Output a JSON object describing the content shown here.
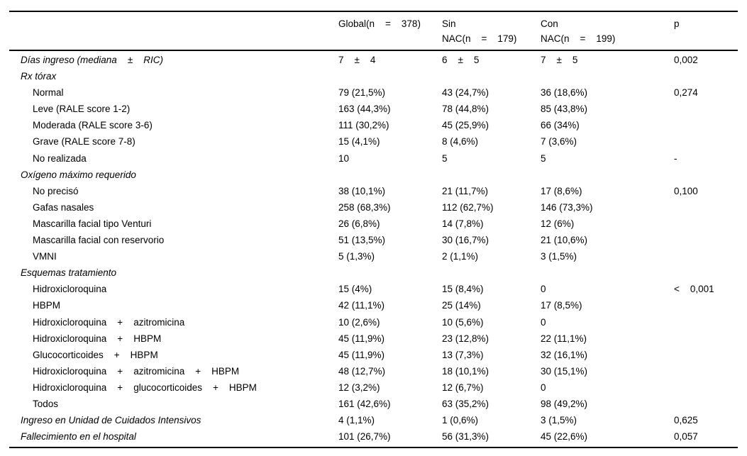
{
  "table": {
    "columns": [
      "",
      "Global(n    =    378)",
      "Sin\nNAC(n    =    179)",
      "Con\nNAC(n    =    199)",
      "p"
    ],
    "rows": [
      {
        "style": "section",
        "label": "Días ingreso (mediana    ±    RIC)",
        "global": "7    ±    4",
        "sin": "6    ±    5",
        "con": "7    ±    5",
        "p": "0,002"
      },
      {
        "style": "section",
        "label": "Rx tórax",
        "global": "",
        "sin": "",
        "con": "",
        "p": ""
      },
      {
        "style": "item",
        "label": "Normal",
        "global": "79 (21,5%)",
        "sin": "43 (24,7%)",
        "con": "36 (18,6%)",
        "p": "0,274"
      },
      {
        "style": "item",
        "label": "Leve (RALE score 1-2)",
        "global": "163 (44,3%)",
        "sin": "78 (44,8%)",
        "con": "85 (43,8%)",
        "p": ""
      },
      {
        "style": "item",
        "label": "Moderada (RALE score 3-6)",
        "global": "111 (30,2%)",
        "sin": "45 (25,9%)",
        "con": "66 (34%)",
        "p": ""
      },
      {
        "style": "item",
        "label": "Grave (RALE score 7-8)",
        "global": "15 (4,1%)",
        "sin": "8 (4,6%)",
        "con": "7 (3,6%)",
        "p": ""
      },
      {
        "style": "item",
        "label": "No realizada",
        "global": "10",
        "sin": "5",
        "con": "5",
        "p": "-"
      },
      {
        "style": "section",
        "label": "Oxígeno máximo requerido",
        "global": "",
        "sin": "",
        "con": "",
        "p": ""
      },
      {
        "style": "item",
        "label": "No precisó",
        "global": "38 (10,1%)",
        "sin": "21 (11,7%)",
        "con": "17 (8,6%)",
        "p": "0,100"
      },
      {
        "style": "item",
        "label": "Gafas nasales",
        "global": "258 (68,3%)",
        "sin": "112 (62,7%)",
        "con": "146 (73,3%)",
        "p": ""
      },
      {
        "style": "item",
        "label": "Mascarilla facial tipo Venturi",
        "global": "26 (6,8%)",
        "sin": "14 (7,8%)",
        "con": "12 (6%)",
        "p": ""
      },
      {
        "style": "item",
        "label": "Mascarilla facial con reservorio",
        "global": "51 (13,5%)",
        "sin": "30 (16,7%)",
        "con": "21 (10,6%)",
        "p": ""
      },
      {
        "style": "item",
        "label": "VMNI",
        "global": "5 (1,3%)",
        "sin": "2 (1,1%)",
        "con": "3 (1,5%)",
        "p": ""
      },
      {
        "style": "section",
        "label": "Esquemas tratamiento",
        "global": "",
        "sin": "",
        "con": "",
        "p": ""
      },
      {
        "style": "item",
        "label": "Hidroxicloroquina",
        "global": "15 (4%)",
        "sin": "15 (8,4%)",
        "con": "0",
        "p": "<    0,001"
      },
      {
        "style": "item",
        "label": "HBPM",
        "global": "42 (11,1%)",
        "sin": "25 (14%)",
        "con": "17 (8,5%)",
        "p": ""
      },
      {
        "style": "item",
        "label": "Hidroxicloroquina    +    azitromicina",
        "global": "10 (2,6%)",
        "sin": "10 (5,6%)",
        "con": "0",
        "p": ""
      },
      {
        "style": "item",
        "label": "Hidroxicloroquina    +    HBPM",
        "global": "45 (11,9%)",
        "sin": "23 (12,8%)",
        "con": "22 (11,1%)",
        "p": ""
      },
      {
        "style": "item",
        "label": "Glucocorticoides    +    HBPM",
        "global": "45 (11,9%)",
        "sin": "13 (7,3%)",
        "con": "32 (16,1%)",
        "p": ""
      },
      {
        "style": "item",
        "label": "Hidroxicloroquina    +    azitromicina    +    HBPM",
        "global": "48 (12,7%)",
        "sin": "18 (10,1%)",
        "con": "30 (15,1%)",
        "p": ""
      },
      {
        "style": "item",
        "label": "Hidroxicloroquina    +    glucocorticoides    +    HBPM",
        "global": "12 (3,2%)",
        "sin": "12 (6,7%)",
        "con": "0",
        "p": ""
      },
      {
        "style": "item",
        "label": "Todos",
        "global": "161 (42,6%)",
        "sin": "63 (35,2%)",
        "con": "98 (49,2%)",
        "p": ""
      },
      {
        "style": "section",
        "label": "Ingreso en Unidad de Cuidados Intensivos",
        "global": "4 (1,1%)",
        "sin": "1 (0,6%)",
        "con": "3 (1,5%)",
        "p": "0,625"
      },
      {
        "style": "section",
        "label": "Fallecimiento en el hospital",
        "global": "101 (26,7%)",
        "sin": "56 (31,3%)",
        "con": "45 (22,6%)",
        "p": "0,057"
      }
    ]
  }
}
